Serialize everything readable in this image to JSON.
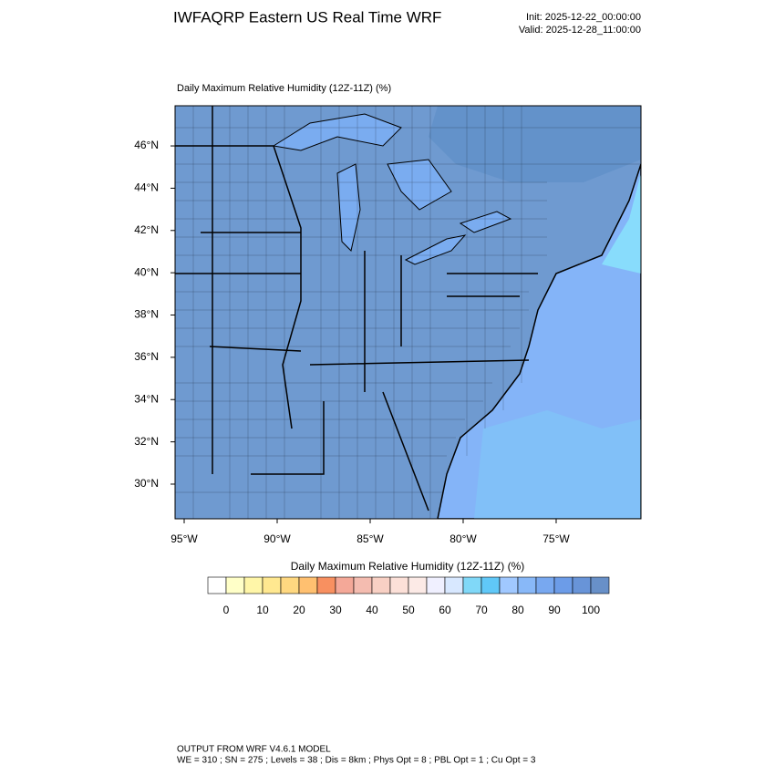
{
  "header": {
    "title": "IWFAQRP Eastern US Real Time WRF",
    "init": "Init: 2025-12-22_00:00:00",
    "valid": "Valid: 2025-12-28_11:00:00"
  },
  "map": {
    "title": "Daily Maximum Relative Humidity (12Z-11Z)   (%)",
    "xlim": [
      -95.49,
      -70.44
    ],
    "ylim": [
      28.36,
      47.9
    ],
    "xticks": [
      {
        "value": -95,
        "label": "95°W"
      },
      {
        "value": -90,
        "label": "90°W"
      },
      {
        "value": -85,
        "label": "85°W"
      },
      {
        "value": -80,
        "label": "80°W"
      },
      {
        "value": -75,
        "label": "75°W"
      }
    ],
    "yticks": [
      {
        "value": 30,
        "label": "30°N"
      },
      {
        "value": 32,
        "label": "32°N"
      },
      {
        "value": 34,
        "label": "34°N"
      },
      {
        "value": 36,
        "label": "36°N"
      },
      {
        "value": 38,
        "label": "38°N"
      },
      {
        "value": 40,
        "label": "40°N"
      },
      {
        "value": 42,
        "label": "42°N"
      },
      {
        "value": 44,
        "label": "44°N"
      },
      {
        "value": 46,
        "label": "46°N"
      }
    ]
  },
  "colorbar": {
    "title": "Daily Maximum Relative Humidity (12Z-11Z)  (%)",
    "lim": [
      -5,
      105
    ],
    "ticks": [
      0,
      10,
      20,
      30,
      40,
      50,
      60,
      70,
      80,
      90,
      100
    ],
    "colors": [
      "#ffffff",
      "#ffffc8",
      "#fff6a8",
      "#ffe890",
      "#ffd880",
      "#ffc070",
      "#f89060",
      "#f4a898",
      "#f4bcb0",
      "#f8d0c4",
      "#fce0d8",
      "#fceae6",
      "#f0f0ff",
      "#d8e8ff",
      "#80d8f8",
      "#60c8f8",
      "#a0c8ff",
      "#88b8f8",
      "#78a8f0",
      "#6c9ce8",
      "#6894d8",
      "#6890c8"
    ]
  },
  "footer": {
    "line1": "OUTPUT FROM WRF V4.6.1 MODEL",
    "line2": "WE = 310 ; SN = 275 ; Levels = 38 ; Dis = 8km ; Phys Opt = 8 ; PBL Opt = 1 ; Cu Opt = 3"
  }
}
